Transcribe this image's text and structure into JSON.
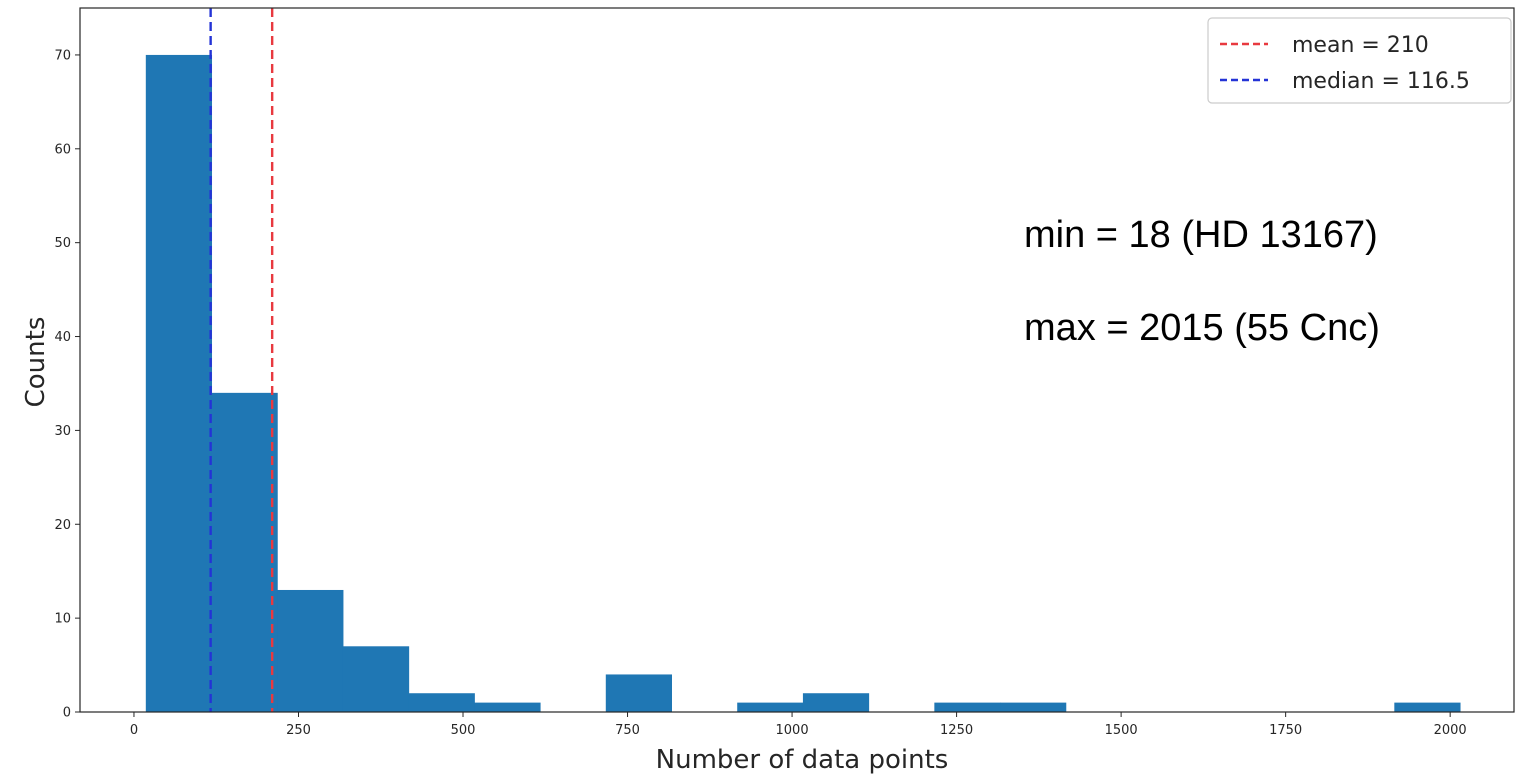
{
  "chart_data": {
    "type": "bar",
    "subtype": "histogram",
    "title": "",
    "xlabel": "Number of data points",
    "ylabel": "Counts",
    "xlim": [
      -82,
      2097
    ],
    "ylim": [
      0,
      75
    ],
    "bins": [
      {
        "x0": 18,
        "x1": 117.85,
        "count": 70
      },
      {
        "x0": 117.85,
        "x1": 217.7,
        "count": 34
      },
      {
        "x0": 217.7,
        "x1": 317.55,
        "count": 13
      },
      {
        "x0": 317.55,
        "x1": 417.4,
        "count": 7
      },
      {
        "x0": 417.4,
        "x1": 517.25,
        "count": 2
      },
      {
        "x0": 517.25,
        "x1": 617.1,
        "count": 1
      },
      {
        "x0": 617.1,
        "x1": 716.95,
        "count": 0
      },
      {
        "x0": 716.95,
        "x1": 816.8,
        "count": 4
      },
      {
        "x0": 816.8,
        "x1": 916.65,
        "count": 0
      },
      {
        "x0": 916.65,
        "x1": 1016.5,
        "count": 1
      },
      {
        "x0": 1016.5,
        "x1": 1116.35,
        "count": 2
      },
      {
        "x0": 1116.35,
        "x1": 1216.2,
        "count": 0
      },
      {
        "x0": 1216.2,
        "x1": 1316.05,
        "count": 1
      },
      {
        "x0": 1316.05,
        "x1": 1415.9,
        "count": 1
      },
      {
        "x0": 1415.9,
        "x1": 1515.75,
        "count": 0
      },
      {
        "x0": 1515.75,
        "x1": 1615.6,
        "count": 0
      },
      {
        "x0": 1615.6,
        "x1": 1715.45,
        "count": 0
      },
      {
        "x0": 1715.45,
        "x1": 1815.3,
        "count": 0
      },
      {
        "x0": 1815.3,
        "x1": 1915.15,
        "count": 0
      },
      {
        "x0": 1915.15,
        "x1": 2015,
        "count": 1
      }
    ],
    "bar_color": "#1f77b4",
    "xticks": [
      0,
      250,
      500,
      750,
      1000,
      1250,
      1500,
      1750,
      2000
    ],
    "xtick_labels": [
      "0",
      "250",
      "500",
      "750",
      "1000",
      "1250",
      "1500",
      "1750",
      "2000"
    ],
    "yticks": [
      0,
      10,
      20,
      30,
      40,
      50,
      60,
      70
    ],
    "ytick_labels": [
      "0",
      "10",
      "20",
      "30",
      "40",
      "50",
      "60",
      "70"
    ],
    "vlines": [
      {
        "name": "mean = 210",
        "x": 210,
        "color": "#e8393f",
        "style": "dashed"
      },
      {
        "name": "median = 116.5",
        "x": 116.5,
        "color": "#2433d6",
        "style": "dashed"
      }
    ],
    "legend": {
      "placement": "top-right"
    },
    "annotations": [
      "min = 18 (HD 13167)",
      "max = 2015 (55 Cnc)"
    ],
    "grid": false
  }
}
